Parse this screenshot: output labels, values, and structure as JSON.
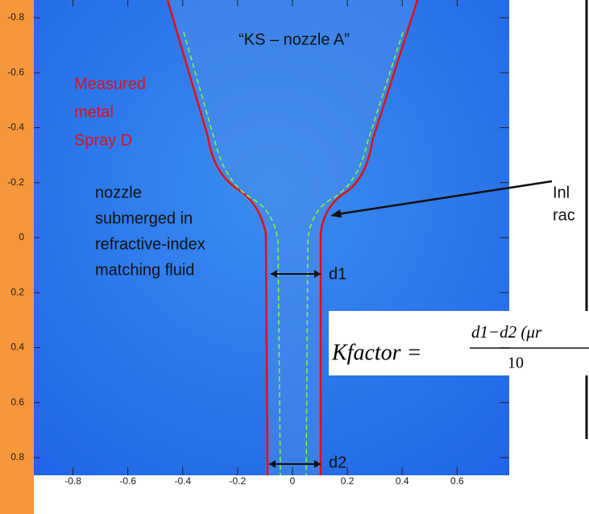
{
  "label": "“KS – nozzle A”",
  "measured": [
    "Measured",
    "metal",
    "Spray D"
  ],
  "nozzle_note": [
    "nozzle",
    "submerged in",
    "refractive-index",
    "matching fluid"
  ],
  "d1": "d1",
  "d2": "d2",
  "inlet": [
    "Inl",
    "rac"
  ],
  "formula": {
    "lhs": "Kfactor =",
    "numerator": "d1−d2 (μr",
    "denominator": "10"
  },
  "axes": {
    "yticks": [
      -0.8,
      -0.6,
      -0.4,
      -0.2,
      0,
      0.2,
      0.4,
      0.6,
      0.8
    ],
    "xticks": [
      -0.8,
      -0.6,
      -0.4,
      -0.2,
      0,
      0.2,
      0.4,
      0.6
    ]
  }
}
